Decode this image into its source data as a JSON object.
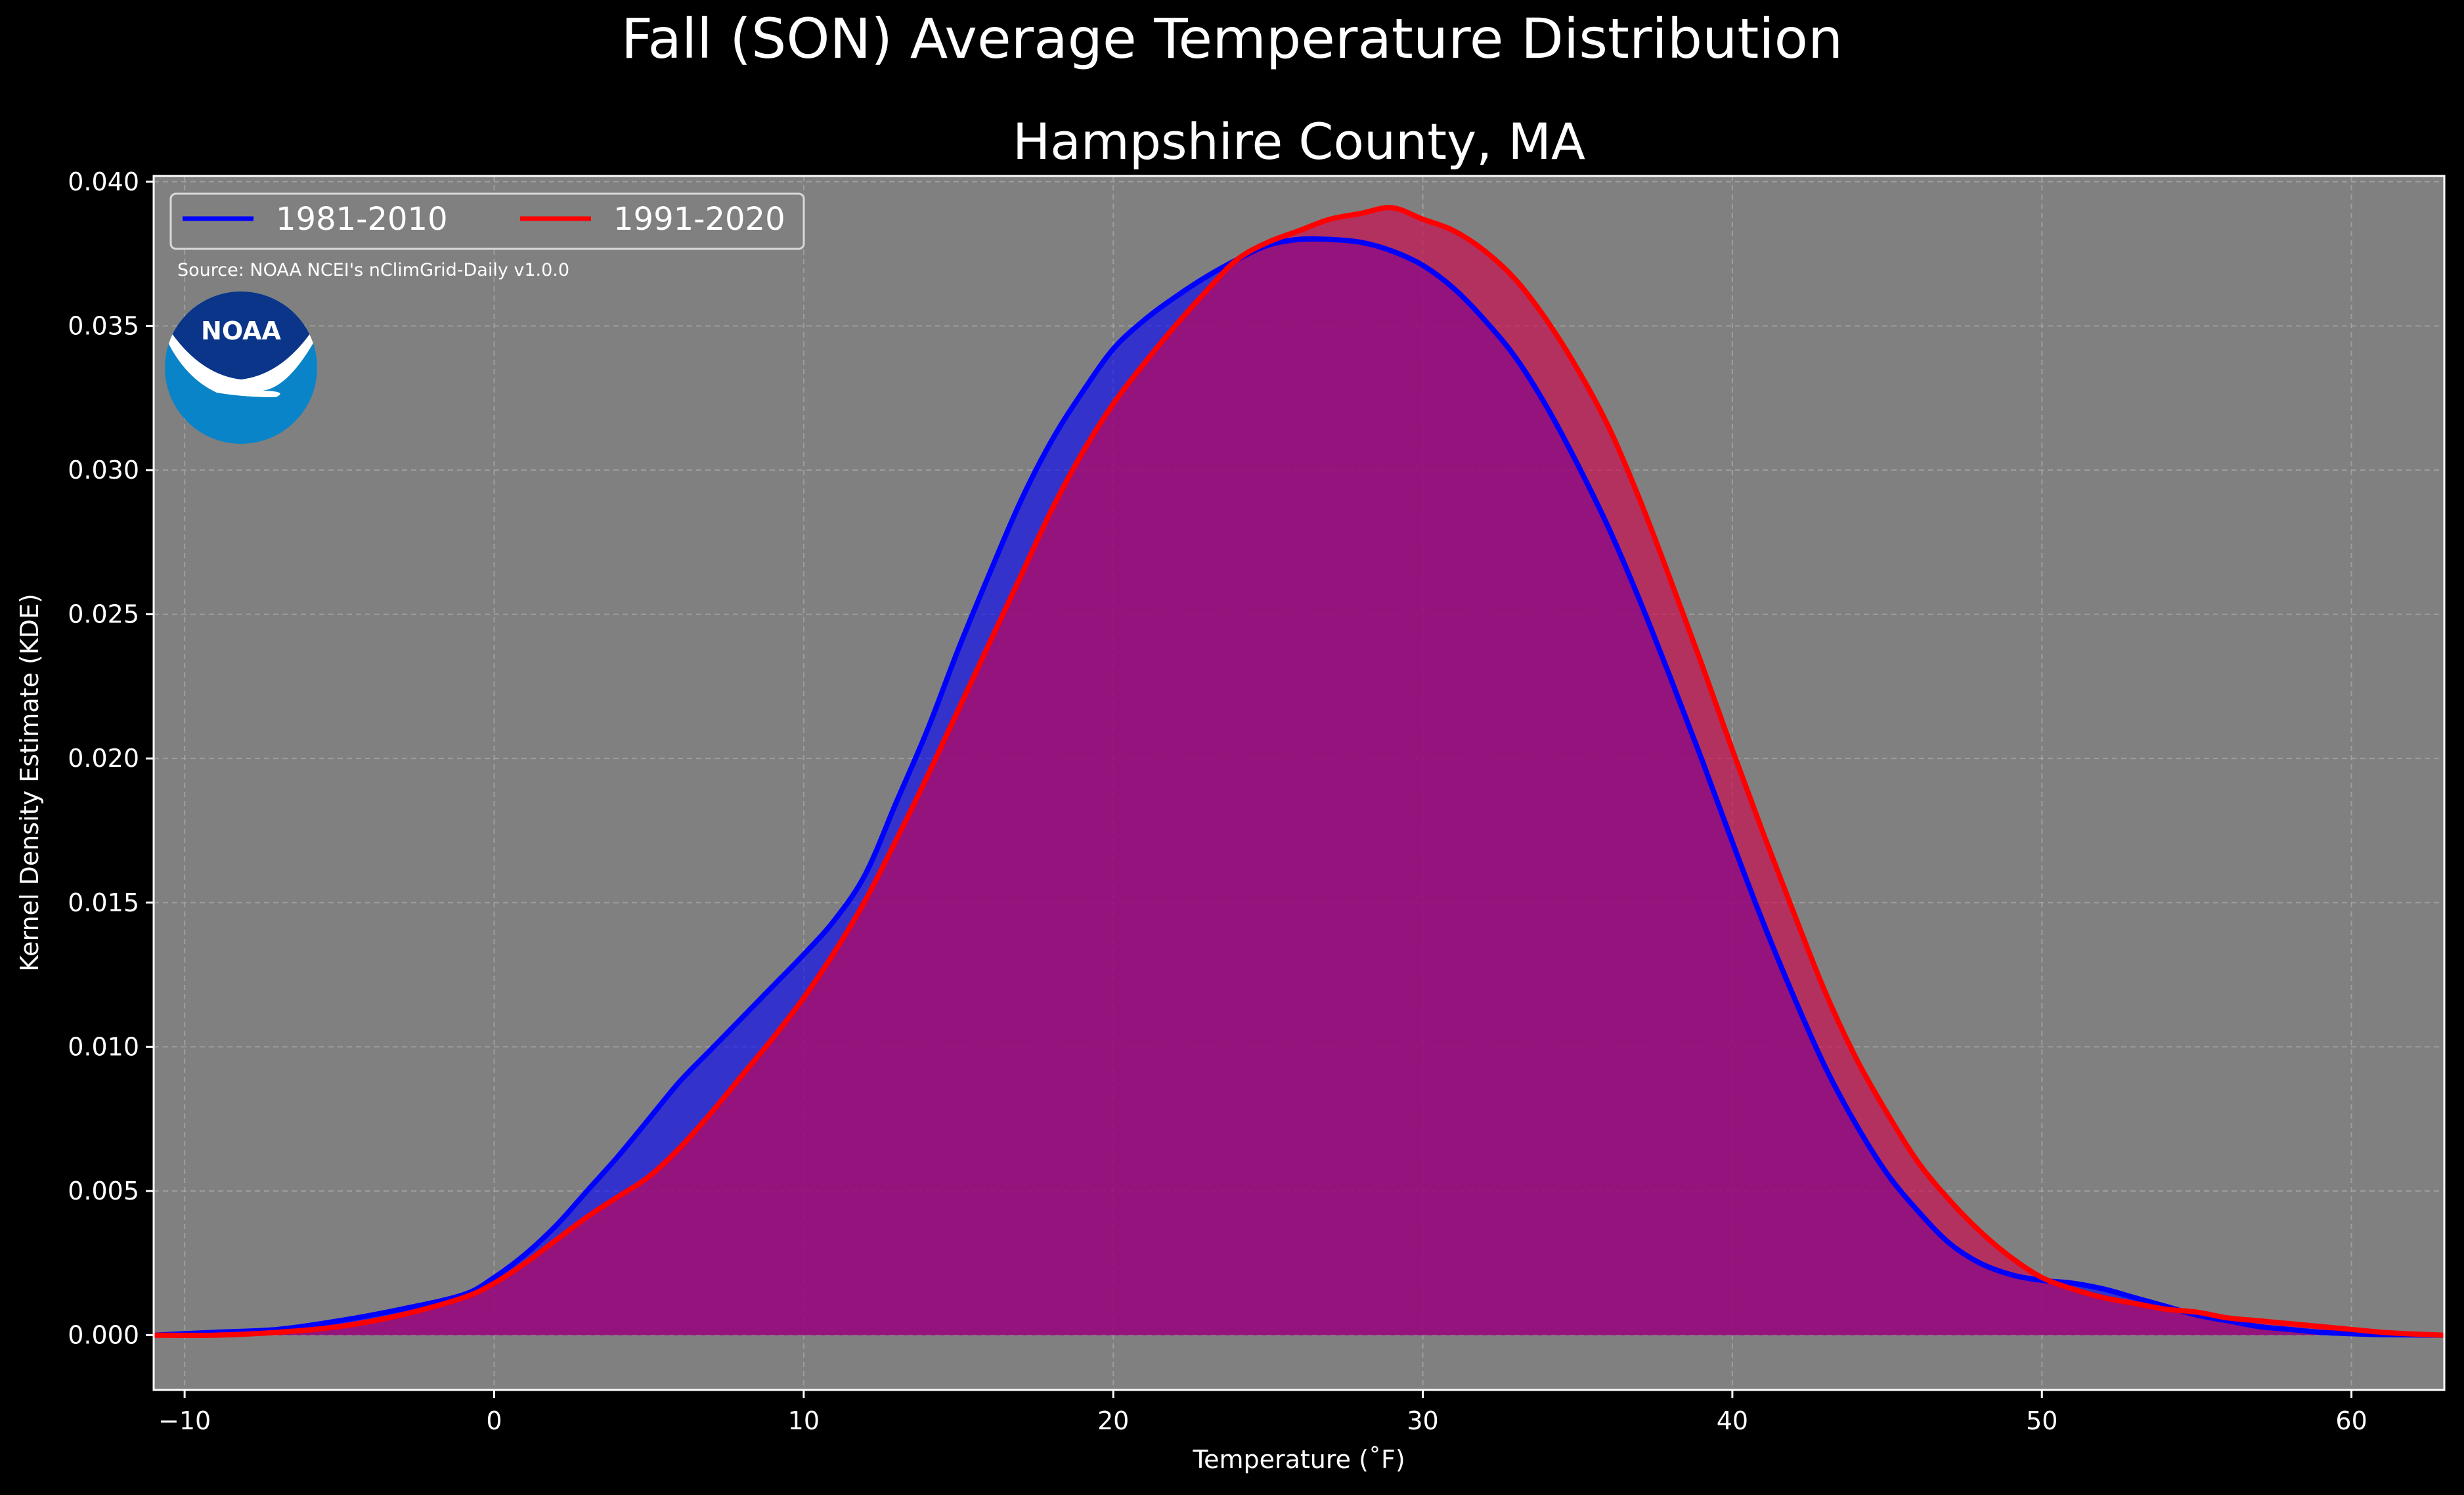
{
  "figure": {
    "suptitle": "Fall (SON) Average Temperature Distribution",
    "title": "Hampshire County, MA",
    "source": "Source: NOAA NCEI's nClimGrid-Daily v1.0.0",
    "logo_text": "NOAA",
    "background": "#000000",
    "axes_background": "#808080"
  },
  "chart_data": {
    "type": "area",
    "xlabel": "Temperature (˚F)",
    "ylabel": "Kernel Density Estimate (KDE)",
    "xlim": [
      -11,
      63
    ],
    "ylim": [
      -0.0019,
      0.0402
    ],
    "xticks": [
      -10,
      0,
      10,
      20,
      30,
      40,
      50,
      60
    ],
    "xtick_labels": [
      "−10",
      "0",
      "10",
      "20",
      "30",
      "40",
      "50",
      "60"
    ],
    "yticks": [
      0.0,
      0.005,
      0.01,
      0.015,
      0.02,
      0.025,
      0.03,
      0.035,
      0.04
    ],
    "ytick_labels": [
      "0.000",
      "0.005",
      "0.010",
      "0.015",
      "0.020",
      "0.025",
      "0.030",
      "0.035",
      "0.040"
    ],
    "grid": true,
    "legend_position": "top-left",
    "series": [
      {
        "name": "1981-2010",
        "color": "#0000ff",
        "fill": "#0000ff",
        "points": [
          [
            -11,
            0
          ],
          [
            -9,
            0.0001
          ],
          [
            -7,
            0.0002
          ],
          [
            -5,
            0.0005
          ],
          [
            -3,
            0.0009
          ],
          [
            -1,
            0.0014
          ],
          [
            0,
            0.002
          ],
          [
            1,
            0.0028
          ],
          [
            2,
            0.0038
          ],
          [
            3,
            0.005
          ],
          [
            4,
            0.0062
          ],
          [
            5,
            0.0075
          ],
          [
            6,
            0.0088
          ],
          [
            7,
            0.0099
          ],
          [
            8,
            0.011
          ],
          [
            9,
            0.0121
          ],
          [
            10,
            0.0132
          ],
          [
            11,
            0.0144
          ],
          [
            12,
            0.016
          ],
          [
            13,
            0.0185
          ],
          [
            14,
            0.021
          ],
          [
            15,
            0.0238
          ],
          [
            16,
            0.0264
          ],
          [
            17,
            0.0289
          ],
          [
            18,
            0.031
          ],
          [
            19,
            0.0327
          ],
          [
            20,
            0.0342
          ],
          [
            21,
            0.0352
          ],
          [
            22,
            0.036
          ],
          [
            23,
            0.0367
          ],
          [
            24,
            0.0373
          ],
          [
            25,
            0.0378
          ],
          [
            26,
            0.038
          ],
          [
            27,
            0.038
          ],
          [
            28,
            0.0379
          ],
          [
            29,
            0.0376
          ],
          [
            30,
            0.0371
          ],
          [
            31,
            0.0363
          ],
          [
            32,
            0.0352
          ],
          [
            33,
            0.0339
          ],
          [
            34,
            0.0322
          ],
          [
            35,
            0.0302
          ],
          [
            36,
            0.028
          ],
          [
            37,
            0.0255
          ],
          [
            38,
            0.0228
          ],
          [
            39,
            0.02
          ],
          [
            40,
            0.0171
          ],
          [
            41,
            0.0143
          ],
          [
            42,
            0.0117
          ],
          [
            43,
            0.0093
          ],
          [
            44,
            0.0073
          ],
          [
            45,
            0.0056
          ],
          [
            46,
            0.0043
          ],
          [
            47,
            0.0032
          ],
          [
            48,
            0.0025
          ],
          [
            49,
            0.0021
          ],
          [
            50,
            0.0019
          ],
          [
            51,
            0.0018
          ],
          [
            52,
            0.0016
          ],
          [
            53,
            0.0013
          ],
          [
            54,
            0.001
          ],
          [
            55,
            0.0007
          ],
          [
            56,
            0.0005
          ],
          [
            57,
            0.0003
          ],
          [
            58,
            0.0002
          ],
          [
            59,
            0.0001
          ],
          [
            60,
            5e-05
          ],
          [
            61,
            2e-05
          ],
          [
            63,
            0
          ]
        ]
      },
      {
        "name": "1991-2020",
        "color": "#ff0000",
        "fill": "#d0004a",
        "points": [
          [
            -11,
            0
          ],
          [
            -9,
            0.0
          ],
          [
            -7,
            0.0001
          ],
          [
            -5,
            0.0003
          ],
          [
            -3,
            0.0007
          ],
          [
            -1,
            0.0013
          ],
          [
            0,
            0.0018
          ],
          [
            1,
            0.0025
          ],
          [
            2,
            0.0033
          ],
          [
            3,
            0.0041
          ],
          [
            4,
            0.0048
          ],
          [
            5,
            0.0055
          ],
          [
            6,
            0.0065
          ],
          [
            7,
            0.0077
          ],
          [
            8,
            0.009
          ],
          [
            9,
            0.0103
          ],
          [
            10,
            0.0117
          ],
          [
            11,
            0.0133
          ],
          [
            12,
            0.0151
          ],
          [
            13,
            0.0172
          ],
          [
            14,
            0.0194
          ],
          [
            15,
            0.0217
          ],
          [
            16,
            0.024
          ],
          [
            17,
            0.0263
          ],
          [
            18,
            0.0286
          ],
          [
            19,
            0.0306
          ],
          [
            20,
            0.0323
          ],
          [
            21,
            0.0337
          ],
          [
            22,
            0.035
          ],
          [
            23,
            0.0362
          ],
          [
            24,
            0.0373
          ],
          [
            25,
            0.0379
          ],
          [
            26,
            0.0383
          ],
          [
            27,
            0.0387
          ],
          [
            28,
            0.0389
          ],
          [
            29,
            0.0391
          ],
          [
            30,
            0.0387
          ],
          [
            31,
            0.0383
          ],
          [
            32,
            0.0376
          ],
          [
            33,
            0.0366
          ],
          [
            34,
            0.0352
          ],
          [
            35,
            0.0335
          ],
          [
            36,
            0.0315
          ],
          [
            37,
            0.029
          ],
          [
            38,
            0.0262
          ],
          [
            39,
            0.0233
          ],
          [
            40,
            0.0203
          ],
          [
            41,
            0.0174
          ],
          [
            42,
            0.0146
          ],
          [
            43,
            0.0119
          ],
          [
            44,
            0.0096
          ],
          [
            45,
            0.0077
          ],
          [
            46,
            0.006
          ],
          [
            47,
            0.0047
          ],
          [
            48,
            0.0036
          ],
          [
            49,
            0.0027
          ],
          [
            50,
            0.002
          ],
          [
            51,
            0.0016
          ],
          [
            52,
            0.0013
          ],
          [
            53,
            0.0011
          ],
          [
            54,
            0.0009
          ],
          [
            55,
            0.0008
          ],
          [
            56,
            0.0006
          ],
          [
            57,
            0.0005
          ],
          [
            58,
            0.0004
          ],
          [
            59,
            0.0003
          ],
          [
            60,
            0.0002
          ],
          [
            61,
            0.0001
          ],
          [
            62,
            4e-05
          ],
          [
            63,
            0
          ]
        ]
      }
    ]
  }
}
